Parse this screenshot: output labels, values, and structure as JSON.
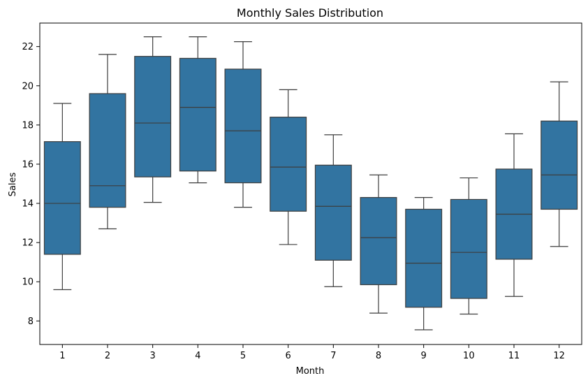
{
  "chart_data": {
    "type": "box",
    "title": "Monthly Sales Distribution",
    "xlabel": "Month",
    "ylabel": "Sales",
    "categories": [
      "1",
      "2",
      "3",
      "4",
      "5",
      "6",
      "7",
      "8",
      "9",
      "10",
      "11",
      "12"
    ],
    "ylim": [
      6.8,
      23.2
    ],
    "yticks": [
      8,
      10,
      12,
      14,
      16,
      18,
      20,
      22
    ],
    "grid": false,
    "box_color": "#3274a1",
    "line_color": "#3d3d3d",
    "boxes": [
      {
        "category": "1",
        "whisker_low": 9.6,
        "q1": 11.4,
        "median": 14.0,
        "q3": 17.15,
        "whisker_high": 19.1
      },
      {
        "category": "2",
        "whisker_low": 12.7,
        "q1": 13.8,
        "median": 14.9,
        "q3": 19.6,
        "whisker_high": 21.6
      },
      {
        "category": "3",
        "whisker_low": 14.05,
        "q1": 15.35,
        "median": 18.1,
        "q3": 21.5,
        "whisker_high": 22.5
      },
      {
        "category": "4",
        "whisker_low": 15.05,
        "q1": 15.65,
        "median": 18.9,
        "q3": 21.4,
        "whisker_high": 22.5
      },
      {
        "category": "5",
        "whisker_low": 13.8,
        "q1": 15.05,
        "median": 17.7,
        "q3": 20.85,
        "whisker_high": 22.25
      },
      {
        "category": "6",
        "whisker_low": 11.9,
        "q1": 13.6,
        "median": 15.85,
        "q3": 18.4,
        "whisker_high": 19.8
      },
      {
        "category": "7",
        "whisker_low": 9.75,
        "q1": 11.1,
        "median": 13.85,
        "q3": 15.95,
        "whisker_high": 17.5
      },
      {
        "category": "8",
        "whisker_low": 8.4,
        "q1": 9.85,
        "median": 12.25,
        "q3": 14.3,
        "whisker_high": 15.45
      },
      {
        "category": "9",
        "whisker_low": 7.55,
        "q1": 8.7,
        "median": 10.95,
        "q3": 13.7,
        "whisker_high": 14.3
      },
      {
        "category": "10",
        "whisker_low": 8.35,
        "q1": 9.15,
        "median": 11.5,
        "q3": 14.2,
        "whisker_high": 15.3
      },
      {
        "category": "11",
        "whisker_low": 9.25,
        "q1": 11.15,
        "median": 13.45,
        "q3": 15.75,
        "whisker_high": 17.55
      },
      {
        "category": "12",
        "whisker_low": 11.8,
        "q1": 13.7,
        "median": 15.45,
        "q3": 18.2,
        "whisker_high": 20.2
      }
    ]
  }
}
